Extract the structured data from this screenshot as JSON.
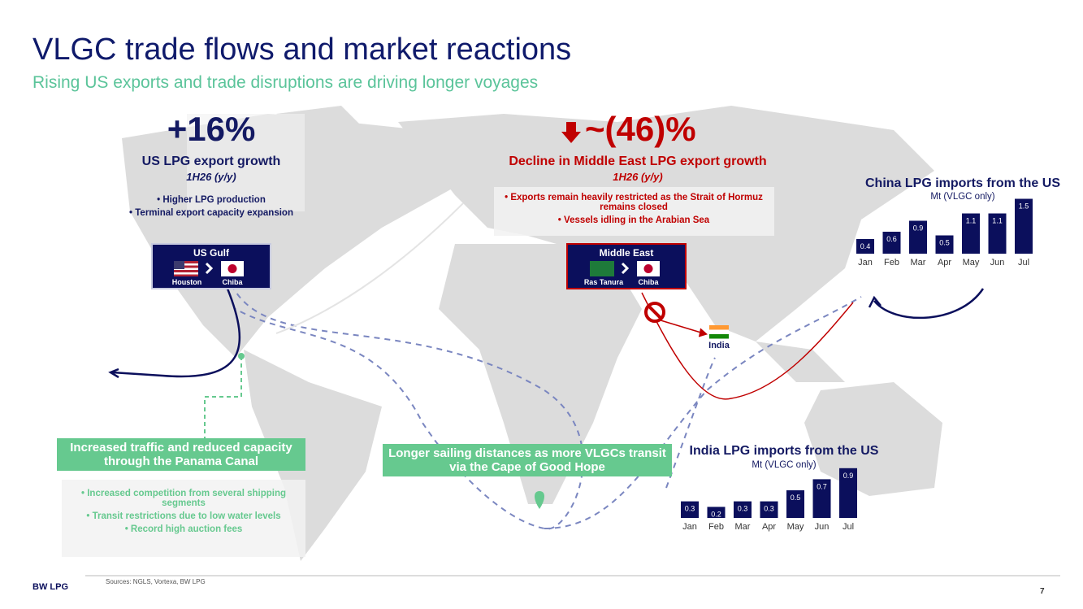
{
  "header": {
    "title": "VLGC trade flows and market reactions",
    "subtitle": "Rising US exports and trade disruptions are driving longer voyages"
  },
  "us": {
    "metric": "+16%",
    "label": "US LPG export growth",
    "period": "1H26 (y/y)",
    "bullets": [
      "Higher LPG production",
      "Terminal export capacity expansion"
    ],
    "route": {
      "region": "US Gulf",
      "from": "Houston",
      "to": "Chiba"
    }
  },
  "middle_east": {
    "metric": "~(46)%",
    "label": "Decline in Middle East LPG export growth",
    "period": "1H26 (y/y)",
    "bullets": [
      "Exports remain heavily restricted as the Strait of Hormuz remains closed",
      "Vessels idling in the Arabian Sea"
    ],
    "route": {
      "region": "Middle East",
      "from": "Ras Tanura",
      "to": "Chiba"
    },
    "destination": "India"
  },
  "panama": {
    "title": "Increased traffic and reduced capacity through the Panama Canal",
    "bullets": [
      "Increased competition from several shipping segments",
      "Transit restrictions due to low water levels",
      "Record high auction fees"
    ]
  },
  "cape": {
    "title": "Longer sailing distances as more VLGCs transit via the Cape of Good Hope"
  },
  "china_chart": {
    "type": "bar",
    "title": "China LPG imports from the US",
    "subtitle": "Mt (VLGC only)",
    "categories": [
      "Jan",
      "Feb",
      "Mar",
      "Apr",
      "May",
      "Jun",
      "Jul"
    ],
    "values": [
      0.4,
      0.6,
      0.9,
      0.5,
      1.1,
      1.1,
      1.5
    ],
    "color": "#0b0f5c"
  },
  "india_chart": {
    "type": "bar",
    "title": "India LPG imports from the US",
    "subtitle": "Mt (VLGC only)",
    "categories": [
      "Jan",
      "Feb",
      "Mar",
      "Apr",
      "May",
      "Jun",
      "Jul"
    ],
    "values": [
      0.3,
      0.2,
      0.3,
      0.3,
      0.5,
      0.7,
      0.9
    ],
    "color": "#0b0f5c"
  },
  "footer": {
    "source": "Sources: NGLS, Vortexa, BW LPG",
    "logo": "BW LPG",
    "page": "7"
  }
}
